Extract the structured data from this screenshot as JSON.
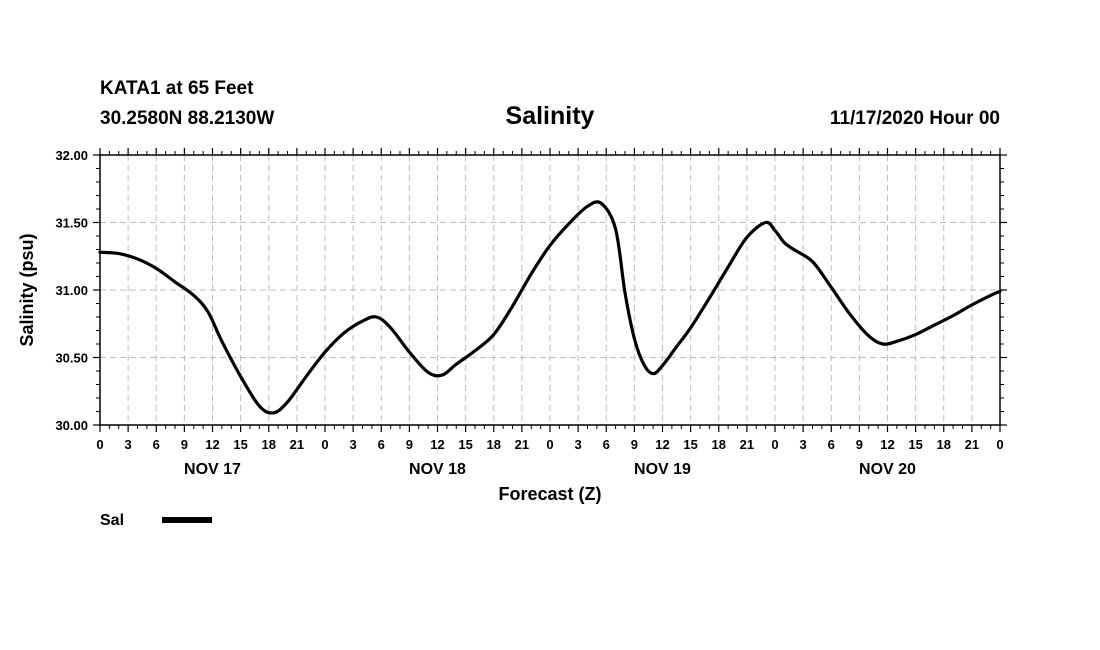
{
  "header": {
    "station": "KATA1 at 65 Feet",
    "location": "30.2580N 88.2130W",
    "title": "Salinity",
    "date": "11/17/2020 Hour 00"
  },
  "chart_data": {
    "type": "line",
    "title": "Salinity",
    "xlabel": "Forecast (Z)",
    "ylabel": "Salinity (psu)",
    "xlim": [
      0,
      96
    ],
    "ylim": [
      30.0,
      32.0
    ],
    "y_ticks": [
      "30.00",
      "30.50",
      "31.00",
      "31.50",
      "32.00"
    ],
    "x_tick_labels": [
      "0",
      "3",
      "6",
      "9",
      "12",
      "15",
      "18",
      "21",
      "0",
      "3",
      "6",
      "9",
      "12",
      "15",
      "18",
      "21",
      "0",
      "3",
      "6",
      "9",
      "12",
      "15",
      "18",
      "21",
      "0",
      "3",
      "6",
      "9",
      "12",
      "15",
      "18",
      "21",
      "0"
    ],
    "day_labels": [
      {
        "label": "NOV 17",
        "hour": 12
      },
      {
        "label": "NOV 18",
        "hour": 36
      },
      {
        "label": "NOV 19",
        "hour": 60
      },
      {
        "label": "NOV 20",
        "hour": 84
      }
    ],
    "grid": true,
    "color": "#000000",
    "series": [
      {
        "name": "Sal",
        "x": [
          0,
          2,
          4,
          6,
          8,
          10,
          11.5,
          13,
          15,
          17,
          18.5,
          20,
          22,
          24,
          26,
          28,
          29.5,
          31,
          33,
          35,
          36.5,
          38,
          40,
          42,
          44,
          46,
          48,
          50,
          52,
          53.5,
          55,
          56,
          57,
          58,
          59,
          60,
          61.5,
          63,
          65,
          67,
          69,
          71,
          72,
          73,
          74,
          76,
          78,
          80,
          82,
          83.5,
          85,
          87,
          89,
          91,
          93,
          95,
          96
        ],
        "y": [
          31.28,
          31.27,
          31.23,
          31.16,
          31.06,
          30.96,
          30.84,
          30.62,
          30.36,
          30.14,
          30.09,
          30.17,
          30.36,
          30.54,
          30.68,
          30.77,
          30.8,
          30.72,
          30.54,
          30.39,
          30.37,
          30.45,
          30.55,
          30.67,
          30.88,
          31.12,
          31.33,
          31.49,
          31.62,
          31.64,
          31.45,
          30.98,
          30.64,
          30.45,
          30.38,
          30.44,
          30.58,
          30.72,
          30.94,
          31.17,
          31.39,
          31.5,
          31.44,
          31.35,
          31.3,
          31.21,
          31.02,
          30.82,
          30.66,
          30.6,
          30.62,
          30.67,
          30.74,
          30.81,
          30.89,
          30.96,
          30.99
        ]
      }
    ]
  },
  "legend": {
    "label": "Sal"
  }
}
